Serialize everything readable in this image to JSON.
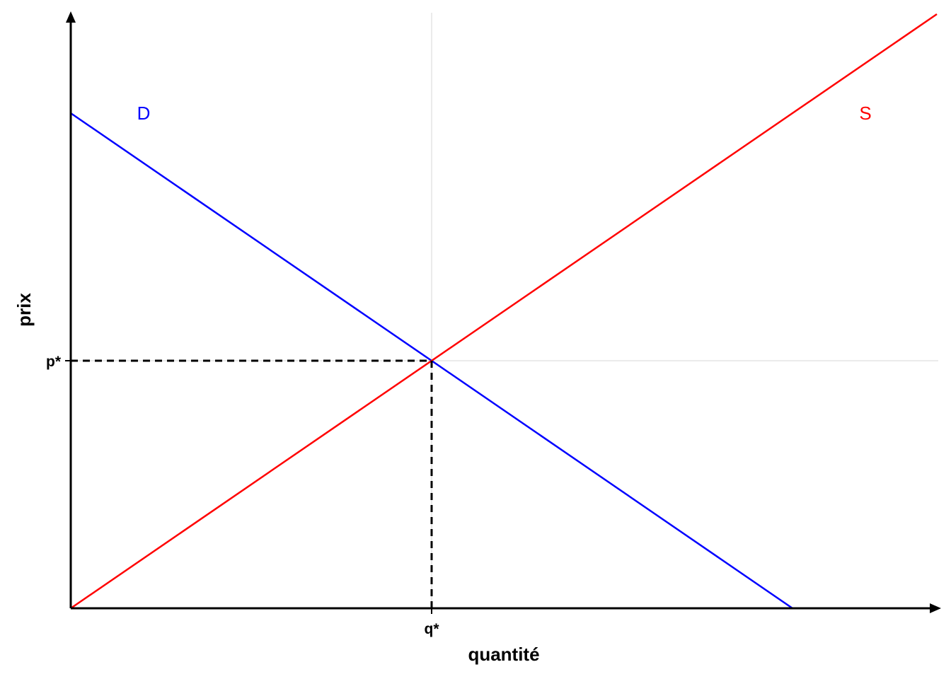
{
  "chart_data": {
    "type": "line",
    "title": "",
    "xlabel": "quantité",
    "ylabel": "prix",
    "xlim": [
      0,
      12
    ],
    "ylim": [
      0,
      10
    ],
    "grid": false,
    "equilibrium": {
      "x": 5,
      "y": 5,
      "x_tick_label": "q*",
      "y_tick_label": "p*",
      "guide_style": "dashed"
    },
    "reference_lines": {
      "vertical_x": 5,
      "horizontal_y": 5,
      "color": "#ebebeb"
    },
    "series": [
      {
        "name": "D",
        "color": "#0000ff",
        "x": [
          0,
          10
        ],
        "y": [
          10,
          0
        ]
      },
      {
        "name": "S",
        "color": "#ff0000",
        "x": [
          0,
          12
        ],
        "y": [
          0,
          12
        ]
      }
    ]
  }
}
